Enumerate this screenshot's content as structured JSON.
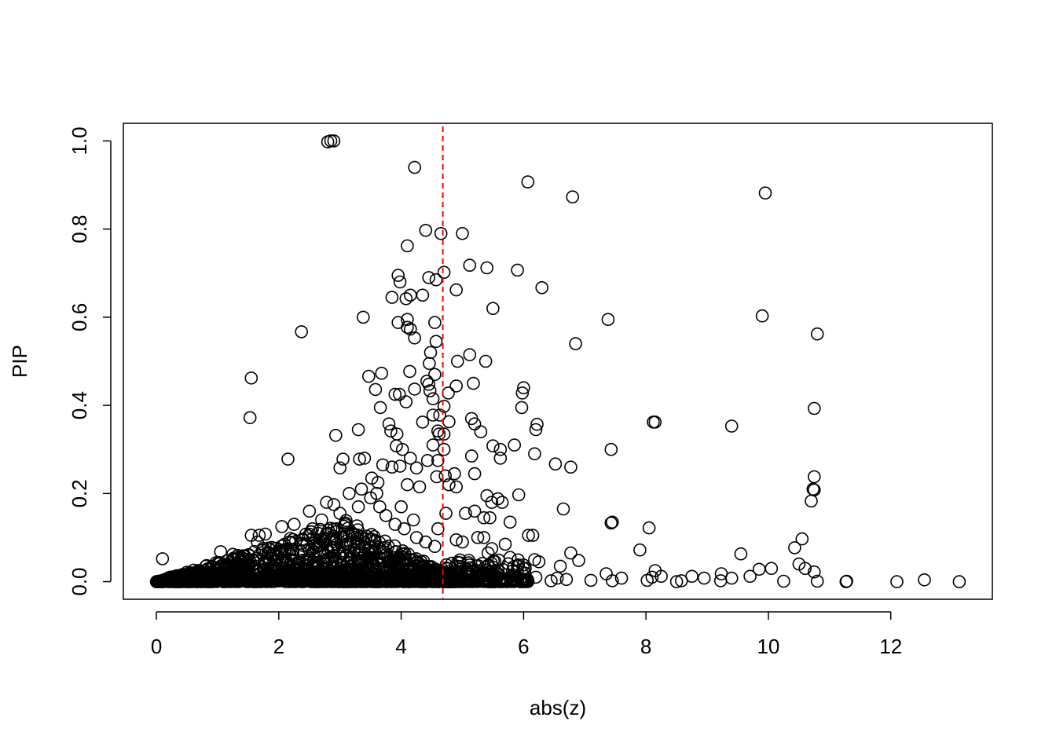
{
  "chart_data": {
    "type": "scatter",
    "title": "",
    "xlabel": "abs(z)",
    "ylabel": "PIP",
    "xlim": [
      -0.54,
      13.66
    ],
    "ylim": [
      -0.04,
      1.04
    ],
    "xticks": [
      0,
      2,
      4,
      6,
      8,
      10,
      12
    ],
    "xtick_labels": [
      "0",
      "2",
      "4",
      "6",
      "8",
      "10",
      "12"
    ],
    "yticks": [
      0.0,
      0.2,
      0.4,
      0.6,
      0.8,
      1.0
    ],
    "ytick_labels": [
      "0.0",
      "0.2",
      "0.4",
      "0.6",
      "0.8",
      "1.0"
    ],
    "grid": false,
    "legend": "none",
    "vline": {
      "x": 4.68,
      "color": "#ff0000",
      "style": "dashed"
    },
    "marker": "open-circle",
    "points": [
      [
        2.8,
        0.998
      ],
      [
        2.85,
        1.0
      ],
      [
        2.9,
        1.0
      ],
      [
        4.22,
        0.94
      ],
      [
        6.07,
        0.907
      ],
      [
        6.8,
        0.873
      ],
      [
        9.95,
        0.882
      ],
      [
        4.4,
        0.797
      ],
      [
        4.65,
        0.79
      ],
      [
        5.0,
        0.79
      ],
      [
        4.1,
        0.762
      ],
      [
        5.12,
        0.718
      ],
      [
        5.4,
        0.712
      ],
      [
        4.7,
        0.702
      ],
      [
        5.9,
        0.707
      ],
      [
        3.95,
        0.695
      ],
      [
        4.45,
        0.69
      ],
      [
        4.57,
        0.685
      ],
      [
        3.98,
        0.68
      ],
      [
        6.3,
        0.667
      ],
      [
        4.9,
        0.662
      ],
      [
        4.15,
        0.65
      ],
      [
        4.35,
        0.65
      ],
      [
        3.85,
        0.645
      ],
      [
        4.08,
        0.642
      ],
      [
        5.5,
        0.62
      ],
      [
        3.38,
        0.6
      ],
      [
        7.38,
        0.595
      ],
      [
        9.9,
        0.603
      ],
      [
        4.1,
        0.595
      ],
      [
        3.95,
        0.588
      ],
      [
        4.55,
        0.588
      ],
      [
        4.1,
        0.577
      ],
      [
        4.15,
        0.573
      ],
      [
        2.37,
        0.567
      ],
      [
        10.8,
        0.562
      ],
      [
        4.22,
        0.553
      ],
      [
        6.85,
        0.54
      ],
      [
        4.57,
        0.545
      ],
      [
        4.48,
        0.52
      ],
      [
        5.12,
        0.515
      ],
      [
        4.92,
        0.5
      ],
      [
        5.38,
        0.5
      ],
      [
        4.46,
        0.495
      ],
      [
        3.68,
        0.473
      ],
      [
        3.47,
        0.466
      ],
      [
        4.14,
        0.477
      ],
      [
        4.55,
        0.47
      ],
      [
        1.55,
        0.462
      ],
      [
        4.42,
        0.455
      ],
      [
        4.45,
        0.448
      ],
      [
        5.18,
        0.45
      ],
      [
        4.9,
        0.444
      ],
      [
        6.0,
        0.44
      ],
      [
        3.58,
        0.436
      ],
      [
        4.22,
        0.437
      ],
      [
        4.47,
        0.433
      ],
      [
        4.77,
        0.428
      ],
      [
        5.98,
        0.428
      ],
      [
        3.9,
        0.425
      ],
      [
        3.97,
        0.425
      ],
      [
        4.52,
        0.415
      ],
      [
        4.08,
        0.408
      ],
      [
        3.66,
        0.395
      ],
      [
        4.7,
        0.398
      ],
      [
        5.97,
        0.395
      ],
      [
        10.75,
        0.393
      ],
      [
        4.52,
        0.378
      ],
      [
        4.63,
        0.378
      ],
      [
        1.53,
        0.372
      ],
      [
        5.15,
        0.37
      ],
      [
        4.35,
        0.362
      ],
      [
        4.78,
        0.363
      ],
      [
        5.2,
        0.358
      ],
      [
        8.12,
        0.362
      ],
      [
        8.15,
        0.362
      ],
      [
        9.4,
        0.353
      ],
      [
        6.22,
        0.357
      ],
      [
        6.2,
        0.345
      ],
      [
        3.3,
        0.345
      ],
      [
        3.8,
        0.358
      ],
      [
        3.83,
        0.342
      ],
      [
        4.6,
        0.342
      ],
      [
        5.3,
        0.34
      ],
      [
        2.93,
        0.332
      ],
      [
        3.93,
        0.335
      ],
      [
        4.62,
        0.335
      ],
      [
        4.7,
        0.335
      ],
      [
        5.5,
        0.308
      ],
      [
        5.62,
        0.3
      ],
      [
        5.85,
        0.31
      ],
      [
        7.43,
        0.3
      ],
      [
        3.92,
        0.308
      ],
      [
        4.02,
        0.3
      ],
      [
        4.52,
        0.31
      ],
      [
        4.7,
        0.3
      ],
      [
        2.15,
        0.278
      ],
      [
        3.05,
        0.278
      ],
      [
        3.32,
        0.278
      ],
      [
        3.4,
        0.28
      ],
      [
        5.15,
        0.285
      ],
      [
        5.62,
        0.28
      ],
      [
        6.18,
        0.29
      ],
      [
        4.15,
        0.28
      ],
      [
        4.43,
        0.275
      ],
      [
        4.6,
        0.275
      ],
      [
        3.7,
        0.265
      ],
      [
        3.85,
        0.26
      ],
      [
        3.98,
        0.262
      ],
      [
        4.25,
        0.258
      ],
      [
        6.52,
        0.267
      ],
      [
        6.77,
        0.26
      ],
      [
        3.0,
        0.258
      ],
      [
        4.72,
        0.24
      ],
      [
        4.87,
        0.245
      ],
      [
        5.2,
        0.245
      ],
      [
        4.58,
        0.238
      ],
      [
        10.75,
        0.238
      ],
      [
        3.52,
        0.235
      ],
      [
        3.62,
        0.225
      ],
      [
        4.1,
        0.22
      ],
      [
        4.3,
        0.215
      ],
      [
        4.78,
        0.22
      ],
      [
        4.9,
        0.215
      ],
      [
        10.75,
        0.208
      ],
      [
        10.73,
        0.21
      ],
      [
        5.4,
        0.195
      ],
      [
        5.58,
        0.188
      ],
      [
        5.92,
        0.197
      ],
      [
        10.7,
        0.183
      ],
      [
        5.48,
        0.18
      ],
      [
        5.65,
        0.18
      ],
      [
        6.65,
        0.165
      ],
      [
        4.73,
        0.155
      ],
      [
        5.05,
        0.155
      ],
      [
        5.2,
        0.16
      ],
      [
        5.35,
        0.145
      ],
      [
        5.45,
        0.145
      ],
      [
        5.78,
        0.135
      ],
      [
        7.43,
        0.133
      ],
      [
        7.45,
        0.135
      ],
      [
        8.05,
        0.122
      ],
      [
        6.08,
        0.105
      ],
      [
        6.15,
        0.105
      ],
      [
        5.25,
        0.1
      ],
      [
        5.35,
        0.1
      ],
      [
        10.55,
        0.097
      ],
      [
        4.9,
        0.095
      ],
      [
        5.0,
        0.09
      ],
      [
        5.7,
        0.085
      ],
      [
        10.43,
        0.077
      ],
      [
        5.48,
        0.075
      ],
      [
        5.42,
        0.065
      ],
      [
        7.9,
        0.072
      ],
      [
        6.77,
        0.065
      ],
      [
        9.55,
        0.063
      ],
      [
        5.78,
        0.055
      ],
      [
        6.9,
        0.048
      ],
      [
        6.18,
        0.05
      ],
      [
        6.25,
        0.045
      ],
      [
        10.5,
        0.04
      ],
      [
        6.6,
        0.035
      ],
      [
        10.05,
        0.03
      ],
      [
        9.85,
        0.028
      ],
      [
        10.6,
        0.03
      ],
      [
        10.75,
        0.022
      ],
      [
        8.15,
        0.025
      ],
      [
        7.35,
        0.018
      ],
      [
        9.23,
        0.018
      ],
      [
        5.25,
        0.02
      ],
      [
        6.0,
        0.03
      ],
      [
        1.55,
        0.105
      ],
      [
        1.68,
        0.105
      ],
      [
        1.78,
        0.108
      ],
      [
        2.05,
        0.125
      ],
      [
        1.05,
        0.068
      ],
      [
        1.25,
        0.062
      ],
      [
        0.1,
        0.052
      ],
      [
        1.65,
        0.09
      ],
      [
        2.55,
        0.12
      ],
      [
        2.7,
        0.14
      ],
      [
        3.0,
        0.155
      ],
      [
        3.15,
        0.2
      ],
      [
        3.35,
        0.21
      ],
      [
        2.78,
        0.18
      ],
      [
        2.5,
        0.16
      ],
      [
        2.25,
        0.13
      ],
      [
        2.9,
        0.175
      ],
      [
        3.5,
        0.19
      ],
      [
        3.65,
        0.17
      ],
      [
        3.75,
        0.15
      ],
      [
        3.9,
        0.13
      ],
      [
        4.05,
        0.12
      ],
      [
        4.25,
        0.1
      ],
      [
        4.4,
        0.09
      ],
      [
        4.55,
        0.08
      ],
      [
        3.3,
        0.17
      ],
      [
        3.6,
        0.2
      ],
      [
        4.0,
        0.17
      ],
      [
        4.2,
        0.14
      ],
      [
        4.6,
        0.12
      ],
      [
        3.2,
        0.11
      ],
      [
        2.95,
        0.12
      ],
      [
        7.1,
        0.003
      ],
      [
        7.45,
        0.002
      ],
      [
        7.6,
        0.008
      ],
      [
        8.02,
        0.003
      ],
      [
        8.1,
        0.01
      ],
      [
        8.25,
        0.012
      ],
      [
        8.5,
        0.0
      ],
      [
        8.58,
        0.002
      ],
      [
        8.75,
        0.012
      ],
      [
        8.95,
        0.008
      ],
      [
        9.22,
        0.002
      ],
      [
        9.4,
        0.008
      ],
      [
        9.7,
        0.012
      ],
      [
        10.25,
        0.001
      ],
      [
        10.8,
        0.001
      ],
      [
        11.27,
        0.0
      ],
      [
        11.28,
        0.001
      ],
      [
        12.1,
        0.0
      ],
      [
        12.55,
        0.004
      ],
      [
        13.12,
        0.0
      ],
      [
        6.45,
        0.002
      ],
      [
        6.55,
        0.008
      ],
      [
        5.85,
        0.003
      ],
      [
        6.7,
        0.005
      ],
      [
        5.6,
        0.0
      ],
      [
        5.95,
        0.0
      ],
      [
        4.8,
        0.0
      ],
      [
        4.85,
        0.005
      ],
      [
        6.2,
        0.01
      ],
      [
        5.1,
        0.005
      ]
    ]
  }
}
